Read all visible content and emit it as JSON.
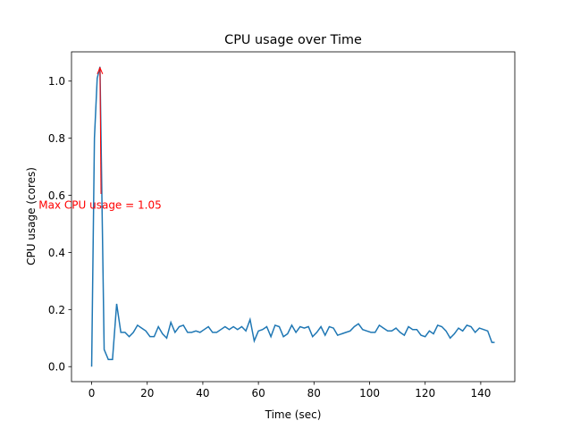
{
  "chart_data": {
    "type": "line",
    "title": "CPU usage over Time",
    "xlabel": "Time (sec)",
    "ylabel": "CPU usage (cores)",
    "color": "#1f77b4",
    "x": [
      0,
      1,
      2,
      3,
      4.5,
      6,
      7.5,
      9,
      10.5,
      12,
      13.5,
      15,
      16.5,
      18,
      19.5,
      21,
      22.5,
      24,
      25.5,
      27,
      28.5,
      30,
      31.5,
      33,
      34.5,
      36,
      37.5,
      39,
      40.5,
      42,
      43.5,
      45,
      46.5,
      48,
      49.5,
      51,
      52.5,
      54,
      55.5,
      57,
      58.5,
      60,
      61.5,
      63,
      64.5,
      66,
      67.5,
      69,
      70.5,
      72,
      73.5,
      75,
      76.5,
      78,
      79.5,
      81,
      82.5,
      84,
      85.5,
      87,
      88.5,
      90,
      91.5,
      93,
      94.5,
      96,
      97.5,
      99,
      100.5,
      102,
      103.5,
      105,
      106.5,
      108,
      109.5,
      111,
      112.5,
      114,
      115.5,
      117,
      118.5,
      120,
      121.5,
      123,
      124.5,
      126,
      127.5,
      129,
      130.5,
      132,
      133.5,
      135,
      136.5,
      138,
      139.5,
      141,
      142.5,
      144,
      145
    ],
    "values": [
      0,
      0.8,
      1.01,
      1.05,
      0.06,
      0.025,
      0.025,
      0.22,
      0.12,
      0.12,
      0.105,
      0.12,
      0.145,
      0.135,
      0.125,
      0.105,
      0.105,
      0.14,
      0.115,
      0.1,
      0.155,
      0.12,
      0.14,
      0.145,
      0.12,
      0.12,
      0.125,
      0.12,
      0.13,
      0.14,
      0.12,
      0.12,
      0.13,
      0.14,
      0.13,
      0.14,
      0.13,
      0.14,
      0.125,
      0.165,
      0.09,
      0.125,
      0.13,
      0.14,
      0.105,
      0.145,
      0.14,
      0.105,
      0.115,
      0.145,
      0.12,
      0.14,
      0.135,
      0.14,
      0.105,
      0.12,
      0.14,
      0.11,
      0.14,
      0.135,
      0.11,
      0.115,
      0.12,
      0.125,
      0.14,
      0.15,
      0.13,
      0.125,
      0.12,
      0.12,
      0.145,
      0.135,
      0.125,
      0.125,
      0.135,
      0.12,
      0.11,
      0.14,
      0.13,
      0.13,
      0.11,
      0.105,
      0.125,
      0.115,
      0.145,
      0.14,
      0.125,
      0.1,
      0.115,
      0.135,
      0.125,
      0.145,
      0.14,
      0.12,
      0.135,
      0.13,
      0.125,
      0.085,
      0.085
    ],
    "xlim": [
      -7.25,
      152.25
    ],
    "ylim": [
      -0.0525,
      1.1025
    ],
    "xticks": [
      0,
      20,
      40,
      60,
      80,
      100,
      120,
      140
    ],
    "yticks": [
      {
        "value": 0,
        "label": "0.0"
      },
      0.2,
      0.4,
      0.6,
      0.8,
      {
        "value": 1,
        "label": "1.0"
      }
    ],
    "annotation": {
      "text": "Max CPU usage = 1.05",
      "color": "red"
    }
  }
}
